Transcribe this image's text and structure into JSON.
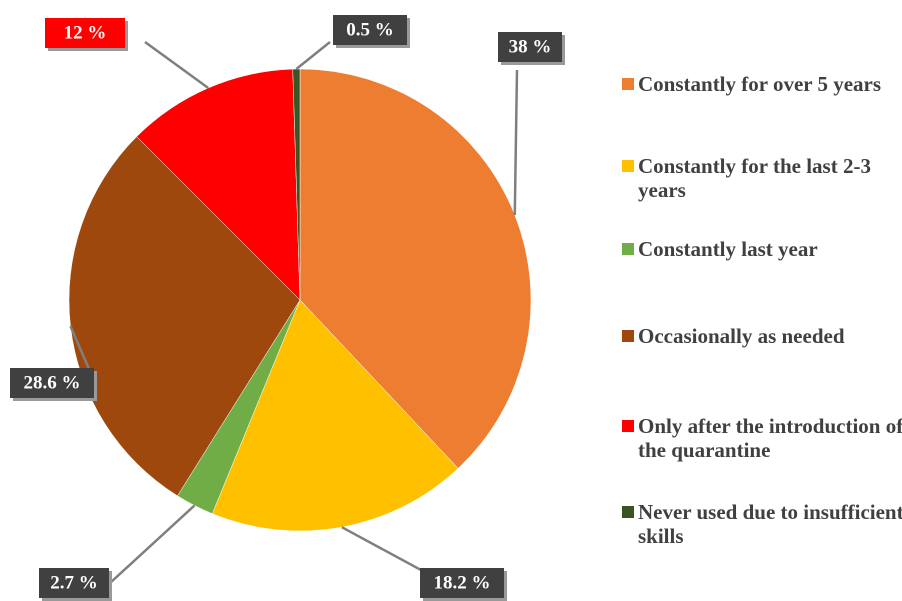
{
  "chart_data": {
    "type": "pie",
    "categories": [
      "Constantly  for over 5 years",
      "Constantly for the last 2-3 years",
      "Constantly last year",
      "Occasionally as needed",
      "Only after the introduction of the quarantine",
      "Never used due to insufficient skills"
    ],
    "values": [
      38,
      18.2,
      2.7,
      28.6,
      12,
      0.5
    ],
    "value_labels": [
      "38 %",
      "18.2 %",
      "2.7 %",
      "28.6 %",
      "12 %",
      "0.5 %"
    ],
    "colors": [
      "#ED7D31",
      "#FFC000",
      "#70AD47",
      "#9E480E",
      "#FF0000",
      "#375623"
    ],
    "legend": "right"
  }
}
